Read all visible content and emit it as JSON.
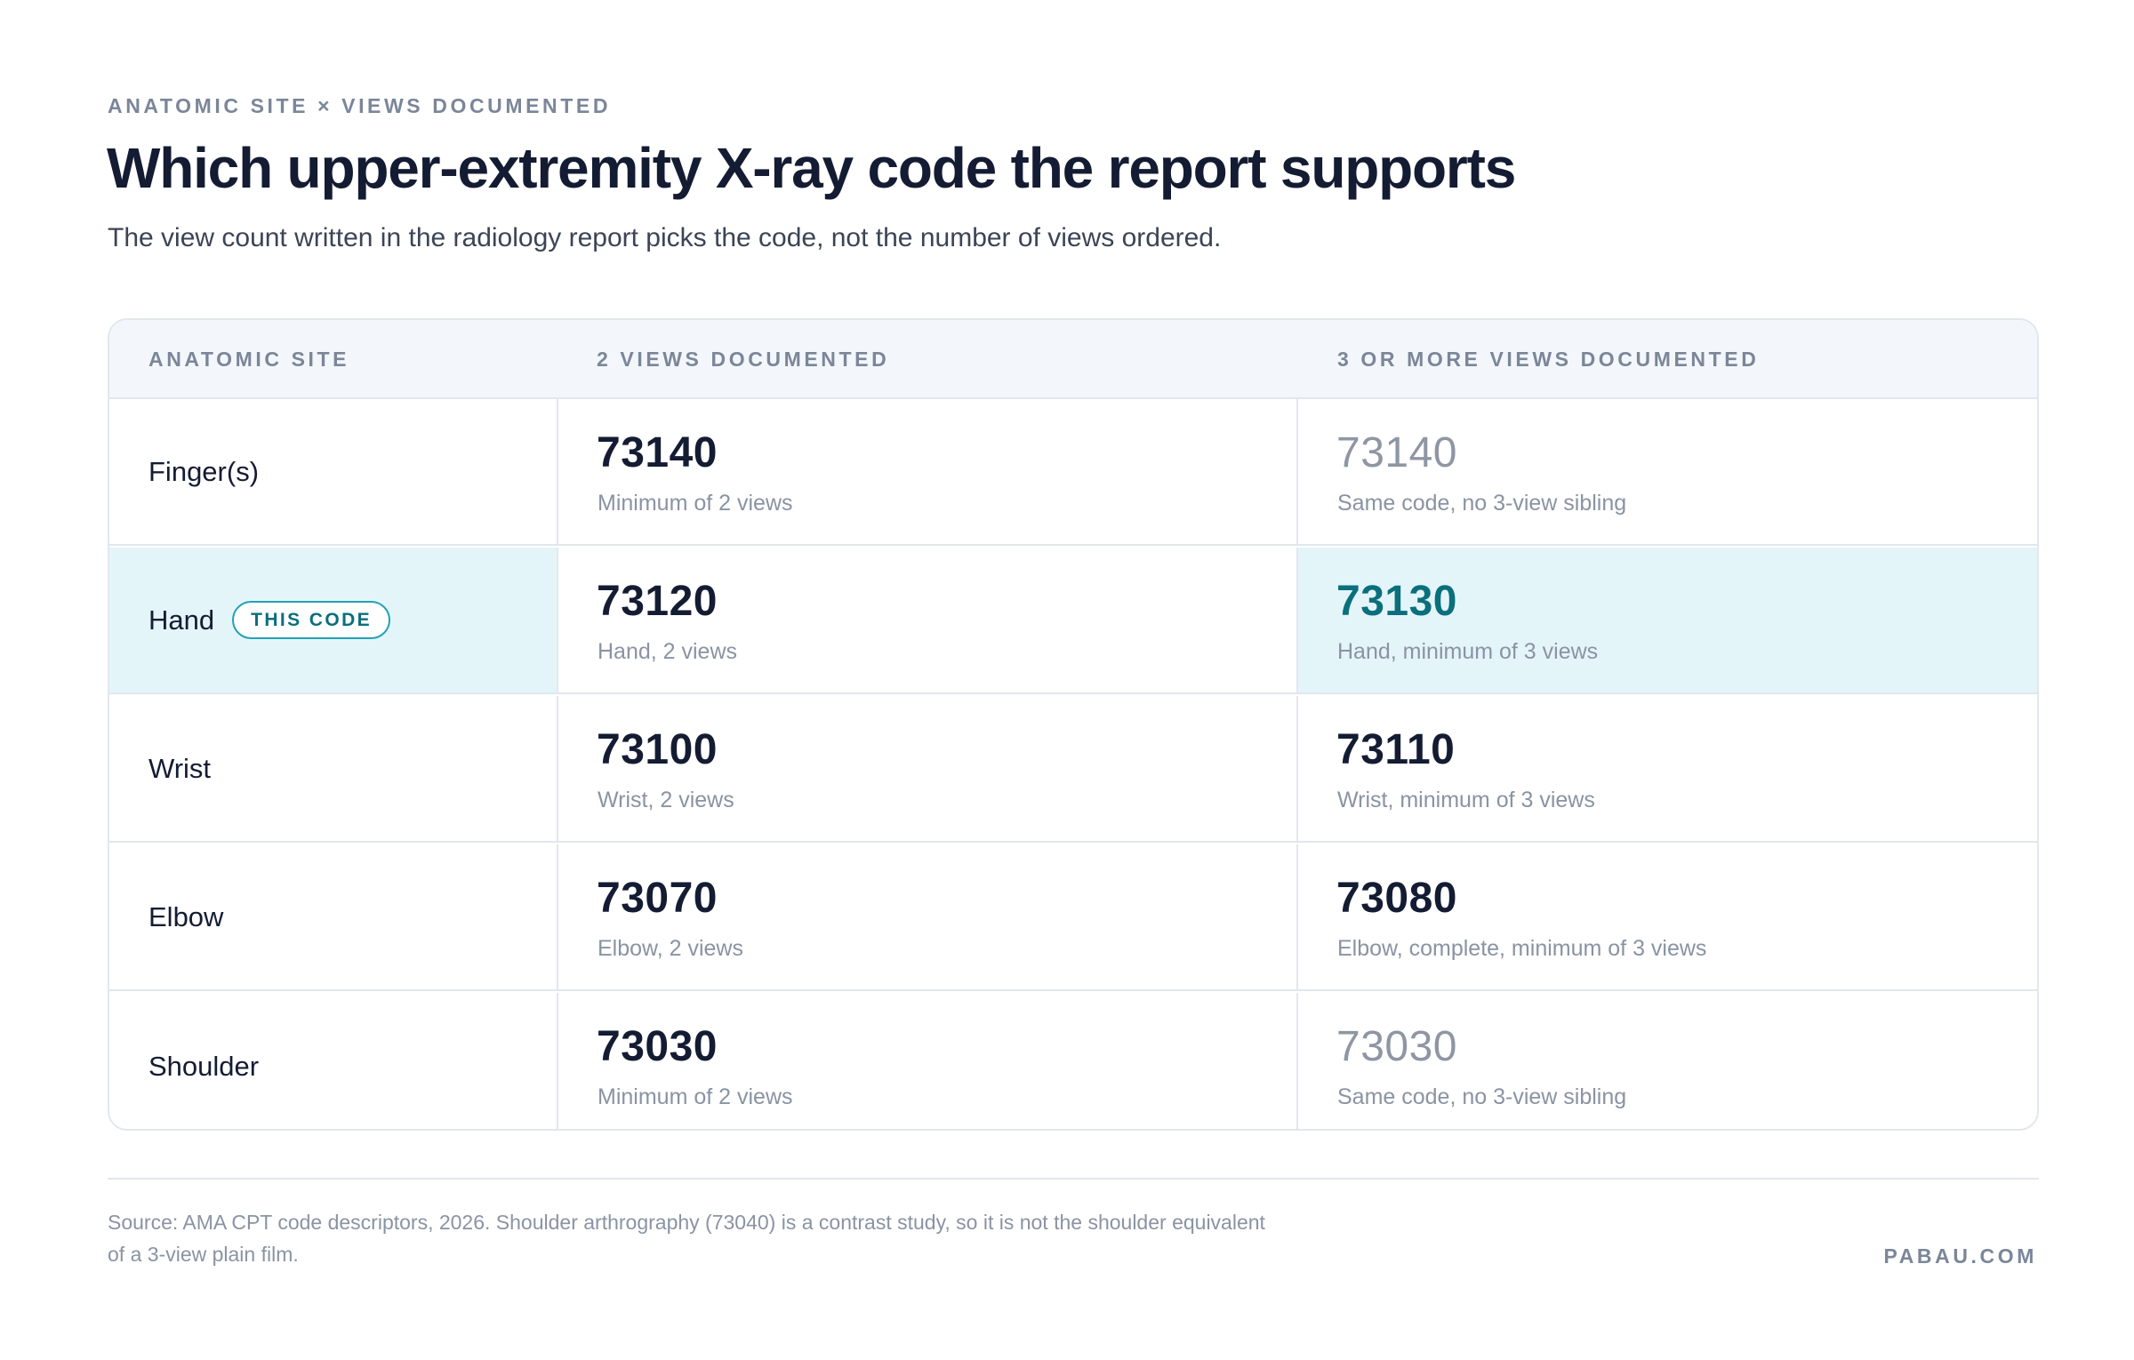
{
  "header": {
    "eyebrow": "ANATOMIC SITE × VIEWS DOCUMENTED",
    "title": "Which upper-extremity X-ray code the report supports",
    "subtitle": "The view count written in the radiology report picks the code, not the number of views ordered."
  },
  "table": {
    "columns": [
      "ANATOMIC SITE",
      "2 VIEWS DOCUMENTED",
      "3 OR MORE VIEWS DOCUMENTED"
    ],
    "rows": [
      {
        "site": "Finger(s)",
        "two_code": "73140",
        "two_desc": "Minimum of 2 views",
        "three_code": "73140",
        "three_desc": "Same code, no 3-view sibling",
        "three_style": "muted"
      },
      {
        "site": "Hand",
        "badge": "THIS CODE",
        "highlighted": true,
        "two_code": "73120",
        "two_desc": "Hand, 2 views",
        "three_code": "73130",
        "three_desc": "Hand, minimum of 3 views",
        "three_style": "accent"
      },
      {
        "site": "Wrist",
        "two_code": "73100",
        "two_desc": "Wrist, 2 views",
        "three_code": "73110",
        "three_desc": "Wrist, minimum of 3 views",
        "three_style": "normal"
      },
      {
        "site": "Elbow",
        "two_code": "73070",
        "two_desc": "Elbow, 2 views",
        "three_code": "73080",
        "three_desc": "Elbow, complete, minimum of 3 views",
        "three_style": "normal"
      },
      {
        "site": "Shoulder",
        "two_code": "73030",
        "two_desc": "Minimum of 2 views",
        "three_code": "73030",
        "three_desc": "Same code, no 3-view sibling",
        "three_style": "muted"
      }
    ]
  },
  "footer": {
    "source": "Source: AMA CPT code descriptors, 2026. Shoulder arthrography (73040) is a contrast study, so it is not the shoulder equivalent of a 3-view plain film.",
    "brand": "PABAU.COM"
  },
  "colors": {
    "highlight_bg": "#e4f5fa",
    "accent": "#0b6f7c",
    "badge_border": "#21a3b3",
    "muted": "#8f96a3"
  }
}
